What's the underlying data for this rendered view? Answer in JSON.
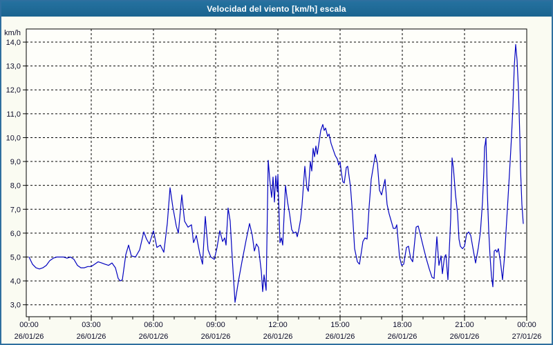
{
  "window": {
    "title": "Velocidad del viento [km/h] escala"
  },
  "colors": {
    "title_bar": "#1d6b9d",
    "title_text": "#ffffff",
    "frame_border": "#2e6f9f",
    "outer_background": "#fafbf2",
    "plot_background": "#fefefa",
    "grid_line": "#000000",
    "axis_line": "#000000",
    "tick_label": "#0b0b28",
    "series_line": "#0000bf"
  },
  "chart_data": {
    "type": "line",
    "title": "Velocidad del viento [km/h] escala",
    "y_unit_label": "km/h",
    "xlabel": "",
    "ylabel": "km/h",
    "ylim": [
      2.5,
      14.55
    ],
    "grid": "dashed",
    "legend_position": "none",
    "y_ticks": [
      {
        "value": 3,
        "label": "3,0"
      },
      {
        "value": 4,
        "label": "4,0"
      },
      {
        "value": 5,
        "label": "5,0"
      },
      {
        "value": 6,
        "label": "6,0"
      },
      {
        "value": 7,
        "label": "7,0"
      },
      {
        "value": 8,
        "label": "8,0"
      },
      {
        "value": 9,
        "label": "9,0"
      },
      {
        "value": 10,
        "label": "10,0"
      },
      {
        "value": 11,
        "label": "11,0"
      },
      {
        "value": 12,
        "label": "12,0"
      },
      {
        "value": 13,
        "label": "13,0"
      },
      {
        "value": 14,
        "label": "14,0"
      }
    ],
    "x_range_minutes": [
      0,
      1440
    ],
    "x_minor_tick_interval_minutes": 60,
    "x_major_ticks": [
      {
        "minutes": 0,
        "time": "00:00",
        "date": "26/01/26"
      },
      {
        "minutes": 180,
        "time": "03:00",
        "date": "26/01/26"
      },
      {
        "minutes": 360,
        "time": "06:00",
        "date": "26/01/26"
      },
      {
        "minutes": 540,
        "time": "09:00",
        "date": "26/01/26"
      },
      {
        "minutes": 720,
        "time": "12:00",
        "date": "26/01/26"
      },
      {
        "minutes": 900,
        "time": "15:00",
        "date": "26/01/26"
      },
      {
        "minutes": 1080,
        "time": "18:00",
        "date": "26/01/26"
      },
      {
        "minutes": 1260,
        "time": "21:00",
        "date": "26/01/26"
      },
      {
        "minutes": 1440,
        "time": "00:00",
        "date": "27/01/26"
      }
    ],
    "series": [
      {
        "name": "wind-speed-kmh",
        "color": "#0000bf",
        "points": [
          [
            0,
            5.0
          ],
          [
            10,
            4.7
          ],
          [
            20,
            4.55
          ],
          [
            30,
            4.5
          ],
          [
            40,
            4.55
          ],
          [
            50,
            4.65
          ],
          [
            60,
            4.85
          ],
          [
            70,
            4.95
          ],
          [
            80,
            5.0
          ],
          [
            100,
            5.0
          ],
          [
            110,
            4.95
          ],
          [
            120,
            5.0
          ],
          [
            130,
            4.9
          ],
          [
            140,
            4.65
          ],
          [
            150,
            4.55
          ],
          [
            160,
            4.55
          ],
          [
            170,
            4.6
          ],
          [
            180,
            4.6
          ],
          [
            190,
            4.7
          ],
          [
            200,
            4.8
          ],
          [
            210,
            4.75
          ],
          [
            220,
            4.7
          ],
          [
            230,
            4.65
          ],
          [
            240,
            4.75
          ],
          [
            250,
            4.55
          ],
          [
            258,
            4.1
          ],
          [
            264,
            4.0
          ],
          [
            270,
            4.05
          ],
          [
            280,
            5.1
          ],
          [
            288,
            5.5
          ],
          [
            296,
            5.05
          ],
          [
            308,
            5.0
          ],
          [
            320,
            5.3
          ],
          [
            332,
            6.05
          ],
          [
            340,
            5.75
          ],
          [
            348,
            5.55
          ],
          [
            360,
            6.1
          ],
          [
            370,
            5.4
          ],
          [
            380,
            5.5
          ],
          [
            390,
            5.2
          ],
          [
            400,
            6.4
          ],
          [
            408,
            7.9
          ],
          [
            416,
            7.1
          ],
          [
            426,
            6.3
          ],
          [
            432,
            6.0
          ],
          [
            442,
            7.6
          ],
          [
            450,
            6.5
          ],
          [
            460,
            6.25
          ],
          [
            470,
            6.35
          ],
          [
            476,
            5.6
          ],
          [
            484,
            5.9
          ],
          [
            494,
            5.15
          ],
          [
            502,
            4.7
          ],
          [
            510,
            6.7
          ],
          [
            518,
            5.3
          ],
          [
            526,
            5.0
          ],
          [
            536,
            4.9
          ],
          [
            544,
            5.4
          ],
          [
            552,
            6.1
          ],
          [
            560,
            5.65
          ],
          [
            566,
            5.8
          ],
          [
            570,
            5.5
          ],
          [
            576,
            7.05
          ],
          [
            582,
            6.5
          ],
          [
            588,
            4.95
          ],
          [
            596,
            3.1
          ],
          [
            606,
            4.0
          ],
          [
            616,
            4.8
          ],
          [
            628,
            5.7
          ],
          [
            638,
            6.4
          ],
          [
            646,
            5.9
          ],
          [
            652,
            5.25
          ],
          [
            658,
            5.55
          ],
          [
            664,
            5.4
          ],
          [
            672,
            4.4
          ],
          [
            676,
            3.55
          ],
          [
            680,
            4.25
          ],
          [
            686,
            3.6
          ],
          [
            692,
            9.05
          ],
          [
            698,
            8.0
          ],
          [
            702,
            7.5
          ],
          [
            706,
            8.35
          ],
          [
            710,
            7.3
          ],
          [
            714,
            8.4
          ],
          [
            718,
            7.75
          ],
          [
            720,
            8.45
          ],
          [
            726,
            5.6
          ],
          [
            730,
            5.8
          ],
          [
            734,
            5.5
          ],
          [
            742,
            8.0
          ],
          [
            748,
            7.3
          ],
          [
            754,
            6.8
          ],
          [
            760,
            6.15
          ],
          [
            766,
            6.0
          ],
          [
            772,
            6.05
          ],
          [
            776,
            5.85
          ],
          [
            780,
            6.1
          ],
          [
            786,
            6.6
          ],
          [
            790,
            7.2
          ],
          [
            798,
            8.8
          ],
          [
            804,
            7.9
          ],
          [
            808,
            7.75
          ],
          [
            814,
            9.0
          ],
          [
            818,
            8.6
          ],
          [
            822,
            9.55
          ],
          [
            826,
            9.2
          ],
          [
            830,
            9.65
          ],
          [
            834,
            9.3
          ],
          [
            844,
            10.3
          ],
          [
            850,
            10.55
          ],
          [
            854,
            10.3
          ],
          [
            858,
            10.4
          ],
          [
            864,
            10.05
          ],
          [
            868,
            10.15
          ],
          [
            874,
            9.75
          ],
          [
            880,
            9.5
          ],
          [
            886,
            9.25
          ],
          [
            892,
            9.1
          ],
          [
            896,
            8.85
          ],
          [
            900,
            9.0
          ],
          [
            904,
            8.5
          ],
          [
            908,
            8.15
          ],
          [
            912,
            8.1
          ],
          [
            918,
            8.75
          ],
          [
            922,
            8.8
          ],
          [
            930,
            7.95
          ],
          [
            936,
            6.8
          ],
          [
            942,
            5.35
          ],
          [
            950,
            4.8
          ],
          [
            956,
            4.7
          ],
          [
            962,
            5.25
          ],
          [
            966,
            5.65
          ],
          [
            972,
            5.8
          ],
          [
            978,
            5.75
          ],
          [
            984,
            7.1
          ],
          [
            990,
            8.25
          ],
          [
            1002,
            9.3
          ],
          [
            1008,
            8.9
          ],
          [
            1014,
            7.8
          ],
          [
            1020,
            7.6
          ],
          [
            1030,
            8.25
          ],
          [
            1036,
            7.2
          ],
          [
            1042,
            6.8
          ],
          [
            1048,
            6.5
          ],
          [
            1054,
            6.2
          ],
          [
            1060,
            6.2
          ],
          [
            1064,
            6.35
          ],
          [
            1072,
            5.0
          ],
          [
            1078,
            4.65
          ],
          [
            1084,
            4.7
          ],
          [
            1092,
            5.4
          ],
          [
            1098,
            5.45
          ],
          [
            1104,
            4.95
          ],
          [
            1110,
            4.8
          ],
          [
            1120,
            6.25
          ],
          [
            1126,
            6.3
          ],
          [
            1132,
            5.95
          ],
          [
            1142,
            5.35
          ],
          [
            1150,
            4.9
          ],
          [
            1158,
            4.5
          ],
          [
            1166,
            4.15
          ],
          [
            1172,
            4.1
          ],
          [
            1180,
            5.85
          ],
          [
            1186,
            4.65
          ],
          [
            1192,
            5.05
          ],
          [
            1196,
            4.3
          ],
          [
            1202,
            5.0
          ],
          [
            1206,
            5.1
          ],
          [
            1212,
            4.05
          ],
          [
            1220,
            6.6
          ],
          [
            1224,
            9.15
          ],
          [
            1228,
            8.7
          ],
          [
            1234,
            7.6
          ],
          [
            1240,
            6.8
          ],
          [
            1244,
            5.75
          ],
          [
            1248,
            5.45
          ],
          [
            1254,
            5.35
          ],
          [
            1260,
            5.45
          ],
          [
            1266,
            5.95
          ],
          [
            1272,
            6.05
          ],
          [
            1278,
            5.9
          ],
          [
            1284,
            5.4
          ],
          [
            1292,
            4.75
          ],
          [
            1300,
            5.4
          ],
          [
            1306,
            6.05
          ],
          [
            1312,
            7.3
          ],
          [
            1316,
            8.6
          ],
          [
            1318,
            9.6
          ],
          [
            1320,
            9.75
          ],
          [
            1322,
            10.0
          ],
          [
            1326,
            7.7
          ],
          [
            1330,
            6.1
          ],
          [
            1334,
            5.0
          ],
          [
            1338,
            4.2
          ],
          [
            1342,
            3.75
          ],
          [
            1346,
            5.25
          ],
          [
            1350,
            5.3
          ],
          [
            1354,
            5.2
          ],
          [
            1358,
            5.35
          ],
          [
            1364,
            4.8
          ],
          [
            1370,
            4.05
          ],
          [
            1376,
            5.05
          ],
          [
            1380,
            6.05
          ],
          [
            1386,
            7.5
          ],
          [
            1392,
            9.0
          ],
          [
            1396,
            10.05
          ],
          [
            1400,
            11.3
          ],
          [
            1404,
            13.0
          ],
          [
            1408,
            13.9
          ],
          [
            1412,
            13.25
          ],
          [
            1416,
            12.05
          ],
          [
            1420,
            10.05
          ],
          [
            1422,
            8.7
          ],
          [
            1426,
            7.2
          ],
          [
            1430,
            6.4
          ]
        ]
      }
    ]
  }
}
